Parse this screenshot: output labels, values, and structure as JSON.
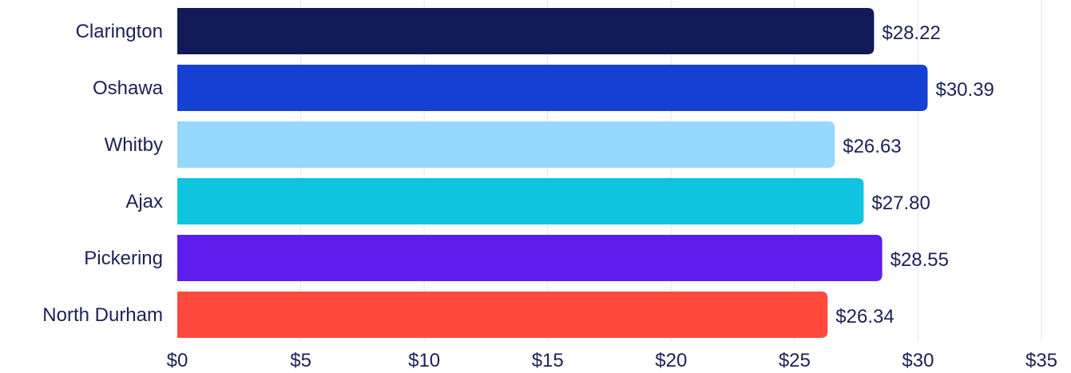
{
  "chart_data": {
    "type": "bar",
    "orientation": "horizontal",
    "categories": [
      "Clarington",
      "Oshawa",
      "Whitby",
      "Ajax",
      "Pickering",
      "North Durham"
    ],
    "values": [
      28.22,
      30.39,
      26.63,
      27.8,
      28.55,
      26.34
    ],
    "value_labels": [
      "$28.22",
      "$30.39",
      "$26.63",
      "$27.80",
      "$28.55",
      "$26.34"
    ],
    "colors": [
      "#0f1a57",
      "#1540d4",
      "#96d8fc",
      "#10c3de",
      "#5f1ded",
      "#ff4a3d"
    ],
    "title": "",
    "xlabel": "",
    "ylabel": "",
    "xlim": [
      0,
      35
    ],
    "x_ticks": [
      0,
      5,
      10,
      15,
      20,
      25,
      30,
      35
    ],
    "x_tick_labels": [
      "$0",
      "$5",
      "$10",
      "$15",
      "$20",
      "$25",
      "$30",
      "$35"
    ],
    "grid": true,
    "legend": "none"
  }
}
